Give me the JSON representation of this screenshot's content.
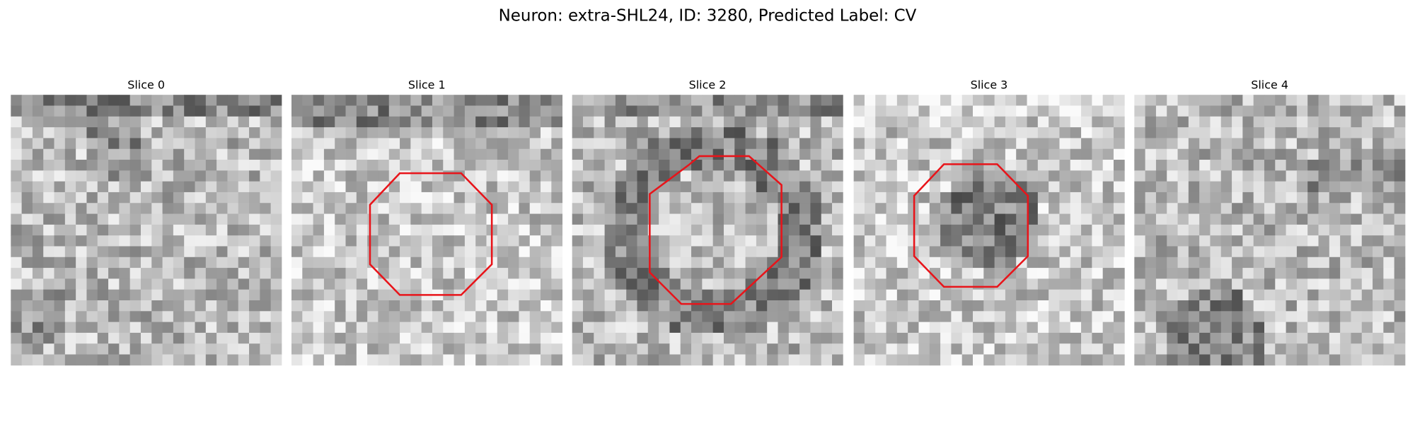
{
  "title": "Neuron: extra-SHL24, ID: 3280, Predicted Label: CV",
  "panels": [
    {
      "title": "Slice 0"
    },
    {
      "title": "Slice 1"
    },
    {
      "title": "Slice 2"
    },
    {
      "title": "Slice 3"
    },
    {
      "title": "Slice 4"
    }
  ]
}
